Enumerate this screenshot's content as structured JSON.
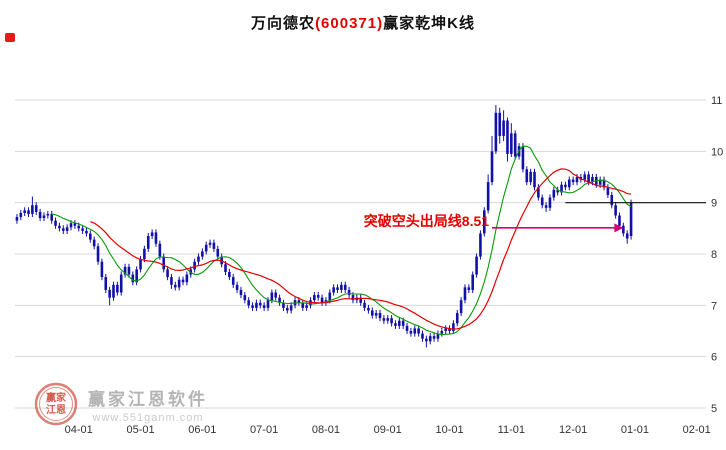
{
  "title": {
    "prefix": "万向德农",
    "code": "(600371)",
    "suffix": "赢家乾坤K线",
    "code_color": "#e60000"
  },
  "watermark": {
    "brand": "赢家江恩软件",
    "url": "www.551ganm.com",
    "logo_line1": "赢家",
    "logo_line2": "江恩"
  },
  "colors": {
    "candle": "#1111aa",
    "ma_fast": "#0a9a0a",
    "ma_slow": "#e60000",
    "grid": "#d8d8d8",
    "axis_text": "#333333"
  },
  "chart_data": {
    "type": "candlestick",
    "title": "万向德农(600371)赢家乾坤K线",
    "x_ticks": [
      "04-01",
      "05-01",
      "06-01",
      "07-01",
      "08-01",
      "09-01",
      "10-01",
      "11-01",
      "12-01",
      "01-01",
      "02-01"
    ],
    "y_ticks": [
      5,
      6,
      7,
      8,
      9,
      10,
      11
    ],
    "ylim": [
      5,
      12
    ],
    "grid": "horizontal-only",
    "legend": "none",
    "candles_per_month": 16,
    "first_tick_index": 16,
    "ma_fast_period": 10,
    "ma_slow_period": 20,
    "annotation": {
      "text": "突破空头出局线8.51",
      "value": 8.51,
      "from_index": 123,
      "to_index": 157,
      "line_color": "#d4006c",
      "text_color": "#e30000"
    },
    "resistance_line": {
      "value": 9.0,
      "from_index": 142,
      "color": "#111111"
    },
    "candles": [
      [
        8.65,
        8.78,
        8.59,
        8.72
      ],
      [
        8.72,
        8.86,
        8.66,
        8.8
      ],
      [
        8.8,
        8.91,
        8.74,
        8.85
      ],
      [
        8.85,
        8.91,
        8.72,
        8.78
      ],
      [
        8.78,
        9.12,
        8.72,
        8.95
      ],
      [
        8.95,
        9.01,
        8.76,
        8.82
      ],
      [
        8.82,
        8.88,
        8.64,
        8.7
      ],
      [
        8.7,
        8.81,
        8.64,
        8.75
      ],
      [
        8.75,
        8.84,
        8.69,
        8.78
      ],
      [
        8.78,
        8.84,
        8.59,
        8.65
      ],
      [
        8.65,
        8.71,
        8.49,
        8.55
      ],
      [
        8.55,
        8.61,
        8.44,
        8.5
      ],
      [
        8.5,
        8.56,
        8.39,
        8.45
      ],
      [
        8.45,
        8.58,
        8.39,
        8.52
      ],
      [
        8.52,
        8.66,
        8.46,
        8.6
      ],
      [
        8.6,
        8.66,
        8.49,
        8.55
      ],
      [
        8.55,
        8.61,
        8.44,
        8.5
      ],
      [
        8.5,
        8.56,
        8.39,
        8.45
      ],
      [
        8.45,
        8.51,
        8.34,
        8.4
      ],
      [
        8.4,
        8.46,
        8.22,
        8.28
      ],
      [
        8.28,
        8.34,
        8.09,
        8.15
      ],
      [
        8.15,
        8.21,
        7.79,
        7.85
      ],
      [
        7.85,
        7.91,
        7.49,
        7.55
      ],
      [
        7.55,
        7.61,
        7.24,
        7.3
      ],
      [
        7.3,
        7.36,
        7.0,
        7.15
      ],
      [
        7.15,
        7.46,
        7.09,
        7.4
      ],
      [
        7.4,
        7.46,
        7.19,
        7.25
      ],
      [
        7.25,
        7.66,
        7.19,
        7.6
      ],
      [
        7.6,
        7.81,
        7.54,
        7.75
      ],
      [
        7.75,
        7.81,
        7.54,
        7.6
      ],
      [
        7.6,
        7.66,
        7.39,
        7.45
      ],
      [
        7.45,
        7.76,
        7.39,
        7.7
      ],
      [
        7.7,
        7.96,
        7.64,
        7.9
      ],
      [
        7.9,
        8.16,
        7.84,
        8.1
      ],
      [
        8.1,
        8.41,
        8.04,
        8.35
      ],
      [
        8.35,
        8.48,
        8.29,
        8.42
      ],
      [
        8.42,
        8.48,
        8.14,
        8.2
      ],
      [
        8.2,
        8.26,
        7.89,
        7.95
      ],
      [
        7.95,
        8.01,
        7.64,
        7.7
      ],
      [
        7.7,
        7.76,
        7.49,
        7.55
      ],
      [
        7.55,
        7.61,
        7.32,
        7.4
      ],
      [
        7.4,
        7.46,
        7.29,
        7.35
      ],
      [
        7.35,
        7.56,
        7.29,
        7.5
      ],
      [
        7.5,
        7.56,
        7.39,
        7.45
      ],
      [
        7.45,
        7.66,
        7.39,
        7.6
      ],
      [
        7.6,
        7.76,
        7.54,
        7.7
      ],
      [
        7.7,
        7.91,
        7.64,
        7.85
      ],
      [
        7.85,
        8.01,
        7.79,
        7.95
      ],
      [
        7.95,
        8.11,
        7.89,
        8.05
      ],
      [
        8.05,
        8.24,
        7.99,
        8.18
      ],
      [
        8.18,
        8.28,
        8.12,
        8.22
      ],
      [
        8.22,
        8.28,
        8.04,
        8.1
      ],
      [
        8.1,
        8.16,
        7.89,
        7.95
      ],
      [
        7.95,
        8.01,
        7.74,
        7.8
      ],
      [
        7.8,
        7.86,
        7.59,
        7.65
      ],
      [
        7.65,
        7.71,
        7.49,
        7.55
      ],
      [
        7.55,
        7.61,
        7.34,
        7.4
      ],
      [
        7.4,
        7.46,
        7.24,
        7.3
      ],
      [
        7.3,
        7.36,
        7.14,
        7.2
      ],
      [
        7.2,
        7.26,
        7.04,
        7.1
      ],
      [
        7.1,
        7.16,
        6.94,
        7.0
      ],
      [
        7.0,
        7.06,
        6.89,
        6.95
      ],
      [
        6.95,
        7.11,
        6.89,
        7.05
      ],
      [
        7.05,
        7.11,
        6.94,
        7.0
      ],
      [
        7.0,
        7.06,
        6.89,
        6.95
      ],
      [
        6.95,
        7.16,
        6.89,
        7.1
      ],
      [
        7.1,
        7.31,
        7.04,
        7.25
      ],
      [
        7.25,
        7.31,
        7.09,
        7.15
      ],
      [
        7.15,
        7.21,
        6.99,
        7.05
      ],
      [
        7.05,
        7.11,
        6.89,
        6.95
      ],
      [
        6.95,
        7.01,
        6.84,
        6.9
      ],
      [
        6.9,
        7.06,
        6.84,
        7.0
      ],
      [
        7.0,
        7.16,
        6.94,
        7.1
      ],
      [
        7.1,
        7.16,
        6.99,
        7.05
      ],
      [
        7.05,
        7.11,
        6.89,
        6.95
      ],
      [
        6.95,
        7.06,
        6.89,
        7.0
      ],
      [
        7.0,
        7.16,
        6.94,
        7.1
      ],
      [
        7.1,
        7.26,
        7.04,
        7.2
      ],
      [
        7.2,
        7.26,
        7.09,
        7.15
      ],
      [
        7.15,
        7.21,
        6.99,
        7.05
      ],
      [
        7.05,
        7.16,
        6.99,
        7.1
      ],
      [
        7.1,
        7.31,
        7.04,
        7.25
      ],
      [
        7.25,
        7.41,
        7.19,
        7.35
      ],
      [
        7.35,
        7.41,
        7.24,
        7.3
      ],
      [
        7.3,
        7.46,
        7.24,
        7.4
      ],
      [
        7.4,
        7.46,
        7.24,
        7.3
      ],
      [
        7.3,
        7.36,
        7.14,
        7.2
      ],
      [
        7.2,
        7.26,
        7.04,
        7.1
      ],
      [
        7.1,
        7.21,
        7.04,
        7.15
      ],
      [
        7.15,
        7.21,
        6.99,
        7.05
      ],
      [
        7.05,
        7.11,
        6.89,
        6.95
      ],
      [
        6.95,
        7.01,
        6.84,
        6.9
      ],
      [
        6.9,
        6.96,
        6.74,
        6.8
      ],
      [
        6.8,
        6.91,
        6.74,
        6.85
      ],
      [
        6.85,
        6.91,
        6.69,
        6.75
      ],
      [
        6.75,
        6.81,
        6.64,
        6.7
      ],
      [
        6.7,
        6.81,
        6.64,
        6.75
      ],
      [
        6.75,
        6.81,
        6.59,
        6.65
      ],
      [
        6.65,
        6.71,
        6.54,
        6.6
      ],
      [
        6.6,
        6.76,
        6.54,
        6.7
      ],
      [
        6.7,
        6.76,
        6.54,
        6.6
      ],
      [
        6.6,
        6.66,
        6.44,
        6.5
      ],
      [
        6.5,
        6.56,
        6.39,
        6.45
      ],
      [
        6.45,
        6.61,
        6.39,
        6.55
      ],
      [
        6.55,
        6.61,
        6.39,
        6.45
      ],
      [
        6.45,
        6.51,
        6.29,
        6.35
      ],
      [
        6.35,
        6.41,
        6.18,
        6.3
      ],
      [
        6.3,
        6.46,
        6.24,
        6.4
      ],
      [
        6.4,
        6.46,
        6.29,
        6.35
      ],
      [
        6.35,
        6.51,
        6.29,
        6.45
      ],
      [
        6.45,
        6.56,
        6.39,
        6.5
      ],
      [
        6.5,
        6.61,
        6.44,
        6.55
      ],
      [
        6.55,
        6.61,
        6.44,
        6.5
      ],
      [
        6.5,
        6.71,
        6.44,
        6.65
      ],
      [
        6.65,
        6.91,
        6.59,
        6.85
      ],
      [
        6.85,
        7.16,
        6.79,
        7.1
      ],
      [
        7.1,
        7.41,
        7.04,
        7.35
      ],
      [
        7.35,
        7.41,
        7.24,
        7.3
      ],
      [
        7.3,
        7.66,
        7.24,
        7.6
      ],
      [
        7.6,
        8.01,
        7.54,
        7.95
      ],
      [
        7.95,
        8.46,
        7.89,
        8.4
      ],
      [
        8.4,
        8.91,
        8.34,
        8.85
      ],
      [
        8.85,
        9.55,
        8.79,
        9.4
      ],
      [
        9.4,
        10.3,
        9.34,
        10.0
      ],
      [
        10.0,
        10.9,
        9.95,
        10.75
      ],
      [
        10.75,
        10.85,
        10.15,
        10.3
      ],
      [
        10.3,
        10.8,
        10.2,
        10.6
      ],
      [
        10.6,
        10.66,
        9.8,
        9.95
      ],
      [
        9.95,
        10.55,
        9.89,
        10.35
      ],
      [
        10.35,
        10.41,
        9.84,
        9.9
      ],
      [
        9.9,
        10.16,
        9.84,
        10.1
      ],
      [
        10.1,
        10.16,
        9.59,
        9.65
      ],
      [
        9.65,
        9.71,
        9.34,
        9.4
      ],
      [
        9.4,
        9.66,
        9.34,
        9.6
      ],
      [
        9.6,
        9.66,
        9.24,
        9.3
      ],
      [
        9.3,
        9.36,
        9.04,
        9.1
      ],
      [
        9.1,
        9.16,
        8.89,
        8.95
      ],
      [
        8.95,
        9.01,
        8.82,
        8.9
      ],
      [
        8.9,
        9.16,
        8.84,
        9.1
      ],
      [
        9.1,
        9.31,
        9.04,
        9.25
      ],
      [
        9.25,
        9.31,
        9.14,
        9.2
      ],
      [
        9.2,
        9.41,
        9.14,
        9.35
      ],
      [
        9.35,
        9.41,
        9.24,
        9.3
      ],
      [
        9.3,
        9.51,
        9.24,
        9.45
      ],
      [
        9.45,
        9.51,
        9.34,
        9.4
      ],
      [
        9.4,
        9.56,
        9.34,
        9.5
      ],
      [
        9.5,
        9.56,
        9.39,
        9.45
      ],
      [
        9.45,
        9.61,
        9.39,
        9.55
      ],
      [
        9.55,
        9.61,
        9.34,
        9.4
      ],
      [
        9.4,
        9.56,
        9.34,
        9.5
      ],
      [
        9.5,
        9.56,
        9.29,
        9.35
      ],
      [
        9.35,
        9.51,
        9.29,
        9.45
      ],
      [
        9.45,
        9.51,
        9.24,
        9.3
      ],
      [
        9.3,
        9.36,
        9.09,
        9.15
      ],
      [
        9.15,
        9.21,
        8.89,
        8.95
      ],
      [
        8.95,
        9.01,
        8.69,
        8.75
      ],
      [
        8.75,
        8.81,
        8.49,
        8.55
      ],
      [
        8.55,
        8.61,
        8.34,
        8.4
      ],
      [
        8.4,
        8.46,
        8.2,
        8.3
      ],
      [
        8.35,
        9.06,
        8.28,
        9.0
      ]
    ]
  }
}
